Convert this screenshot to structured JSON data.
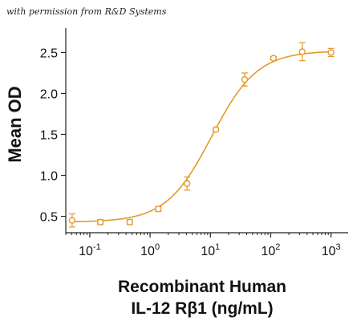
{
  "watermark": "with permission from R&D Systems",
  "chart_data": {
    "type": "scatter",
    "title": "",
    "xlabel_line1": "Recombinant Human",
    "xlabel_line2": "IL-12 Rβ1 (ng/mL)",
    "ylabel": "Mean OD",
    "xscale": "log",
    "xlim": [
      0.04,
      1600
    ],
    "ylim": [
      0.3,
      2.7
    ],
    "x_ticks": [
      {
        "value": 0.1,
        "base": "10",
        "exp": "-1"
      },
      {
        "value": 1,
        "base": "10",
        "exp": "0"
      },
      {
        "value": 10,
        "base": "10",
        "exp": "1"
      },
      {
        "value": 100,
        "base": "10",
        "exp": "2"
      },
      {
        "value": 1000,
        "base": "10",
        "exp": "3"
      }
    ],
    "y_ticks": [
      {
        "value": 0.5,
        "label": "0.5"
      },
      {
        "value": 1.0,
        "label": "1.0"
      },
      {
        "value": 1.5,
        "label": "1.5"
      },
      {
        "value": 2.0,
        "label": "2.0"
      },
      {
        "value": 2.5,
        "label": "2.5"
      }
    ],
    "grid": false,
    "color": "#E39A2A",
    "series": [
      {
        "x": [
          0.051,
          0.15,
          0.46,
          1.37,
          4.1,
          12.3,
          37,
          111,
          333,
          1000
        ],
        "y": [
          0.45,
          0.43,
          0.43,
          0.59,
          0.9,
          1.56,
          2.17,
          2.43,
          2.51,
          2.5
        ],
        "err": [
          0.08,
          0.03,
          0.03,
          0.03,
          0.08,
          0.02,
          0.08,
          0.02,
          0.11,
          0.05
        ]
      }
    ],
    "fit": {
      "type": "4PL",
      "bottom": 0.43,
      "top": 2.52,
      "ec50": 10.5,
      "hill": 1.15
    }
  }
}
